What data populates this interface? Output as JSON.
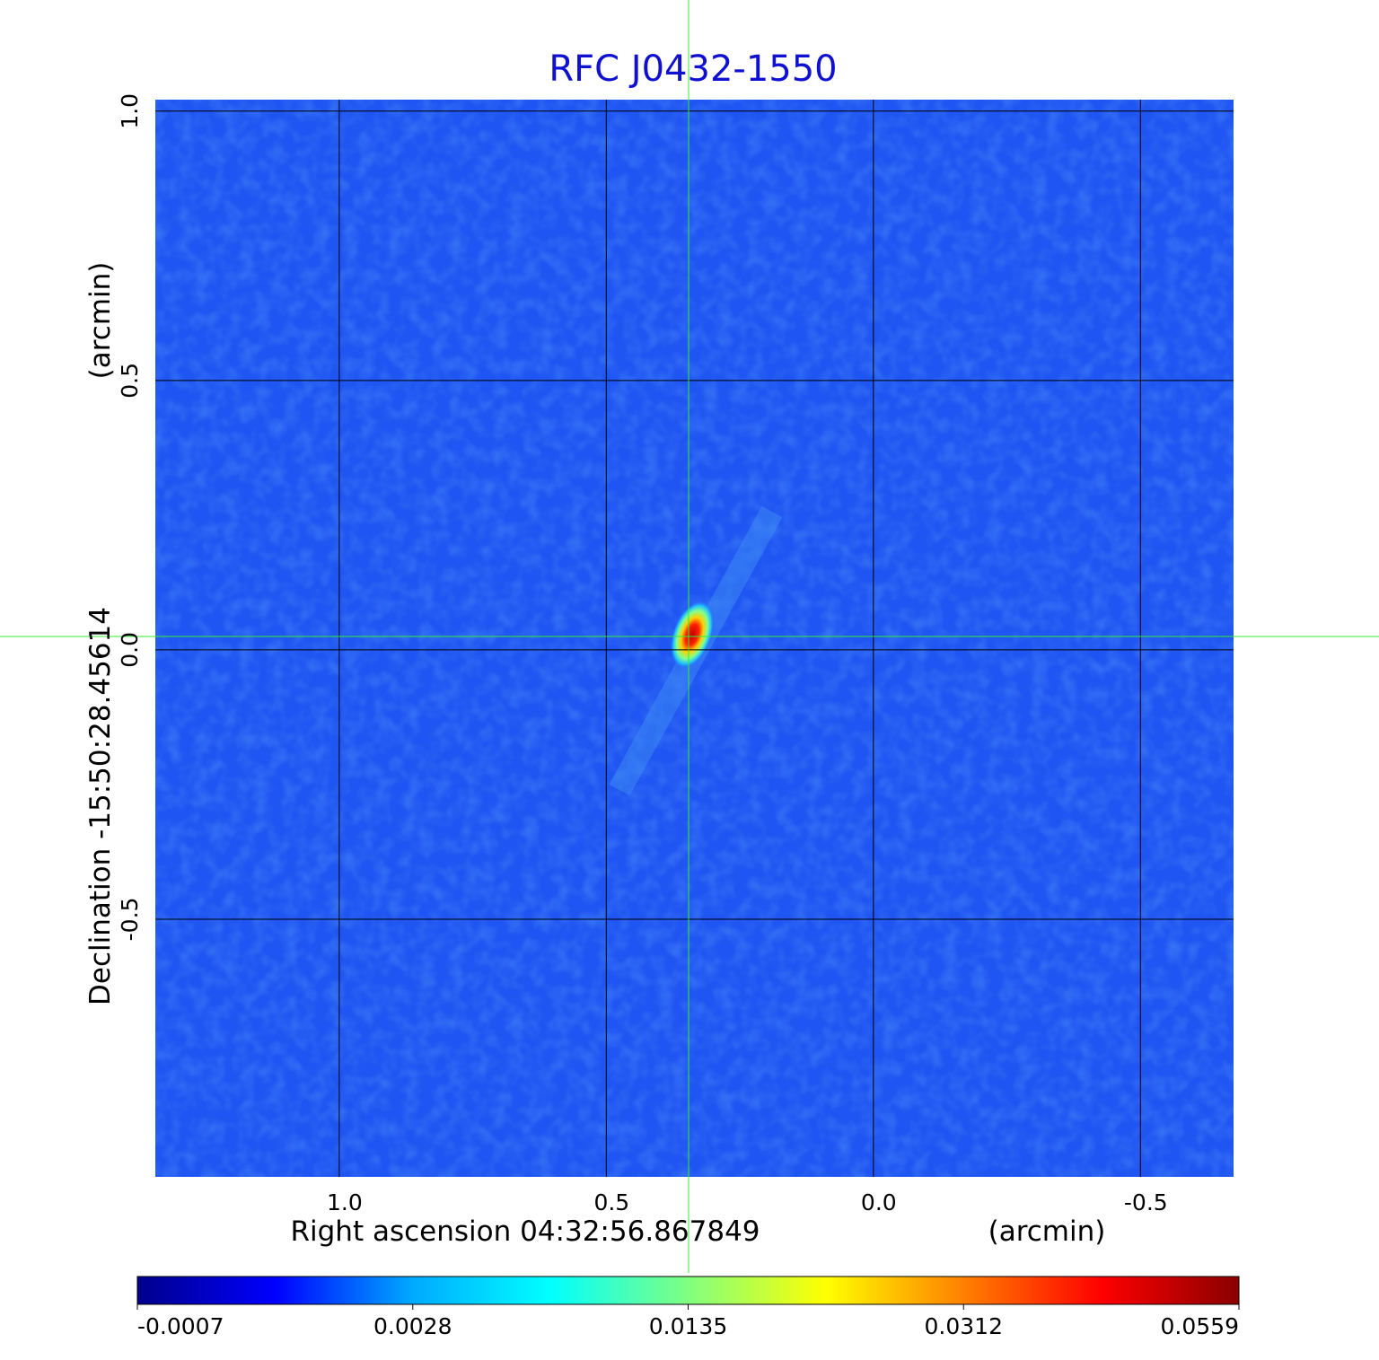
{
  "chart_data": {
    "type": "image",
    "title": "RFC J0432-1550",
    "x_label": "Right ascension  04:32:56.867849",
    "x_unit": "(arcmin)",
    "y_label": "Declination  -15:50:28.45614",
    "y_unit": "(arcmin)",
    "xlim": [
      1.346,
      -0.676
    ],
    "ylim": [
      -0.98,
      1.023
    ],
    "xticks": [
      {
        "value": 1,
        "label": "1.0"
      },
      {
        "value": 0.5,
        "label": "0.5"
      },
      {
        "value": 0,
        "label": "0.0"
      },
      {
        "value": -0.5,
        "label": "-0.5"
      }
    ],
    "yticks": [
      {
        "value": 1,
        "label": "1.0"
      },
      {
        "value": 0.5,
        "label": "0.5"
      },
      {
        "value": 0,
        "label": "0.0"
      },
      {
        "value": -0.5,
        "label": "-0.5"
      }
    ],
    "grid": true,
    "colorbar_ticks": [
      -0.0007,
      0.0028,
      0.0135,
      0.0312,
      0.0559
    ],
    "colormap": [
      "#00008b",
      "#0000ff",
      "#00aaff",
      "#00ffff",
      "#80ff80",
      "#ffff00",
      "#ff8000",
      "#ff0000",
      "#8b0000"
    ]
  }
}
